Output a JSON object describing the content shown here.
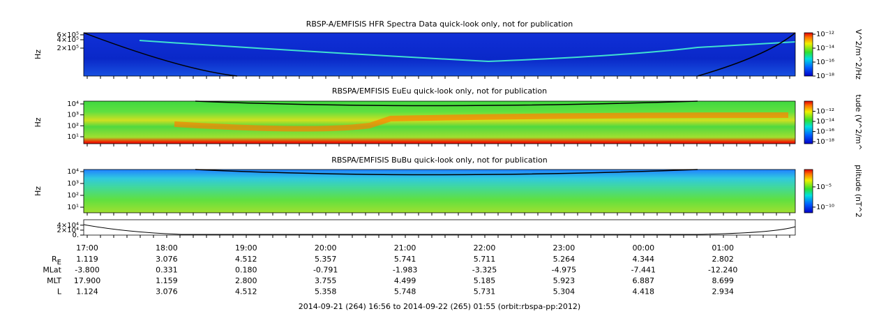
{
  "chart_data": [
    {
      "type": "spectrogram",
      "title": "RBSP-A/EMFISIS  HFR Spectra Data quick-look only, not for publication",
      "y_label": "Hz",
      "log_y": true,
      "ylim": [
        20000,
        710000
      ],
      "yticks": [
        {
          "value": 600000,
          "label": "6×10⁵"
        },
        {
          "value": 400000,
          "label": "4×10⁵"
        },
        {
          "value": 200000,
          "label": "2×10⁵"
        }
      ],
      "colorbar_label": "V^2/m^2/Hz",
      "clim": [
        1e-18,
        1.6e-12
      ],
      "cticks": [
        {
          "value": 1e-12,
          "label": "10⁻¹²"
        },
        {
          "value": 1e-14,
          "label": "10⁻¹⁴"
        },
        {
          "value": 1e-16,
          "label": "10⁻¹⁶"
        },
        {
          "value": 1e-18,
          "label": "10⁻¹⁸"
        }
      ]
    },
    {
      "type": "spectrogram",
      "title": "RBSPA/EMFISIS  EuEu quick-look only, not for publication",
      "y_label": "Hz",
      "log_y": true,
      "ylim": [
        2.3,
        18000
      ],
      "yticks": [
        {
          "value": 10000,
          "label": "10⁴"
        },
        {
          "value": 1000,
          "label": "10³"
        },
        {
          "value": 100,
          "label": "10²"
        },
        {
          "value": 10,
          "label": "10¹"
        }
      ],
      "colorbar_label": "tude (V^2/m^",
      "clim": [
        4e-19,
        1e-10
      ],
      "cticks": [
        {
          "value": 1e-12,
          "label": "10⁻¹²"
        },
        {
          "value": 1e-14,
          "label": "10⁻¹⁴"
        },
        {
          "value": 1e-16,
          "label": "10⁻¹⁶"
        },
        {
          "value": 1e-18,
          "label": "10⁻¹⁸"
        }
      ]
    },
    {
      "type": "spectrogram",
      "title": "RBSPA/EMFISIS  BuBu quick-look only, not for publication",
      "y_label": "Hz",
      "log_y": true,
      "ylim": [
        3.4,
        15000
      ],
      "yticks": [
        {
          "value": 10000,
          "label": "10⁴"
        },
        {
          "value": 1000,
          "label": "10³"
        },
        {
          "value": 100,
          "label": "10²"
        },
        {
          "value": 10,
          "label": "10¹"
        }
      ],
      "colorbar_label": "plitude (nT^2",
      "clim": [
        4e-12,
        0.2
      ],
      "cticks": [
        {
          "value": 1e-05,
          "label": "10⁻⁵"
        },
        {
          "value": 1e-10,
          "label": "10⁻¹⁰"
        }
      ]
    },
    {
      "type": "line",
      "log_y": false,
      "ylim": [
        0,
        62000
      ],
      "yticks": [
        {
          "value": 40000,
          "label": "4×10⁴"
        },
        {
          "value": 20000,
          "label": "2×10⁴"
        },
        {
          "value": 0,
          "label": "0."
        }
      ]
    }
  ],
  "time_labels": [
    "17:00",
    "18:00",
    "19:00",
    "20:00",
    "21:00",
    "22:00",
    "23:00",
    "00:00",
    "01:00"
  ],
  "ephemeris": [
    {
      "label": "R",
      "sub": "E",
      "values": [
        "1.119",
        "3.076",
        "4.512",
        "5.357",
        "5.741",
        "5.711",
        "5.264",
        "4.344",
        "2.802"
      ]
    },
    {
      "label": "MLat",
      "values": [
        "-3.800",
        "0.331",
        "0.180",
        "-0.791",
        "-1.983",
        "-3.325",
        "-4.975",
        "-7.441",
        "-12.240"
      ]
    },
    {
      "label": "MLT",
      "values": [
        "17.900",
        "1.159",
        "2.800",
        "3.755",
        "4.499",
        "5.185",
        "5.923",
        "6.887",
        "8.699"
      ]
    },
    {
      "label": "L",
      "values": [
        "1.124",
        "3.076",
        "4.512",
        "5.358",
        "5.748",
        "5.731",
        "5.304",
        "4.418",
        "2.934"
      ]
    }
  ],
  "footer": "2014-09-21 (264) 16:56 to 2014-09-22 (265) 01:55 (orbit:rbspa-pp:2012)"
}
